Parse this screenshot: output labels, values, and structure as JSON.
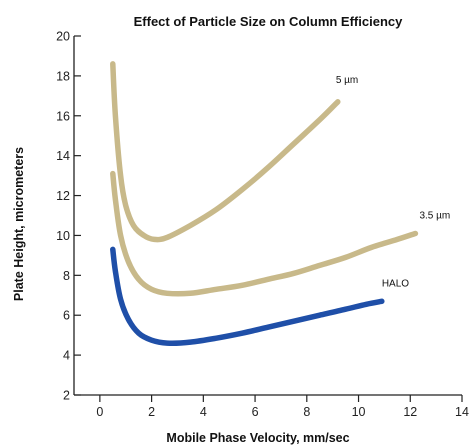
{
  "chart_data": {
    "type": "line",
    "title": "Effect of Particle Size on Column Efficiency",
    "xlabel": "Mobile Phase Velocity, mm/sec",
    "ylabel": "Plate Height, micrometers",
    "xlim": [
      -1,
      14
    ],
    "ylim": [
      2,
      20
    ],
    "x_ticks": [
      0,
      2,
      4,
      6,
      8,
      10,
      12,
      14
    ],
    "y_ticks": [
      2,
      4,
      6,
      8,
      10,
      12,
      14,
      16,
      18,
      20
    ],
    "grid": false,
    "series": [
      {
        "name": "5 µm",
        "color": "#c8b98a",
        "points": [
          [
            0.5,
            18.6
          ],
          [
            0.6,
            16.0
          ],
          [
            0.8,
            13.0
          ],
          [
            1.0,
            11.5
          ],
          [
            1.3,
            10.5
          ],
          [
            1.7,
            10.0
          ],
          [
            2.1,
            9.8
          ],
          [
            2.6,
            9.9
          ],
          [
            3.5,
            10.5
          ],
          [
            4.5,
            11.3
          ],
          [
            5.5,
            12.3
          ],
          [
            6.5,
            13.4
          ],
          [
            7.5,
            14.6
          ],
          [
            8.5,
            15.8
          ],
          [
            9.2,
            16.7
          ]
        ]
      },
      {
        "name": "3.5 µm",
        "color": "#c8b98a",
        "points": [
          [
            0.5,
            13.1
          ],
          [
            0.6,
            11.8
          ],
          [
            0.8,
            10.0
          ],
          [
            1.1,
            8.7
          ],
          [
            1.5,
            7.8
          ],
          [
            2.0,
            7.3
          ],
          [
            2.6,
            7.1
          ],
          [
            3.5,
            7.1
          ],
          [
            4.5,
            7.3
          ],
          [
            5.5,
            7.5
          ],
          [
            6.5,
            7.8
          ],
          [
            7.5,
            8.1
          ],
          [
            8.5,
            8.5
          ],
          [
            9.5,
            8.9
          ],
          [
            10.5,
            9.4
          ],
          [
            11.5,
            9.8
          ],
          [
            12.2,
            10.1
          ]
        ]
      },
      {
        "name": "HALO",
        "color": "#1f4fa8",
        "points": [
          [
            0.5,
            9.3
          ],
          [
            0.6,
            8.2
          ],
          [
            0.8,
            6.8
          ],
          [
            1.1,
            5.8
          ],
          [
            1.5,
            5.1
          ],
          [
            2.0,
            4.75
          ],
          [
            2.6,
            4.6
          ],
          [
            3.5,
            4.65
          ],
          [
            4.5,
            4.85
          ],
          [
            5.5,
            5.1
          ],
          [
            6.5,
            5.4
          ],
          [
            7.5,
            5.7
          ],
          [
            8.5,
            6.0
          ],
          [
            9.5,
            6.3
          ],
          [
            10.3,
            6.55
          ],
          [
            10.9,
            6.7
          ]
        ]
      }
    ]
  }
}
